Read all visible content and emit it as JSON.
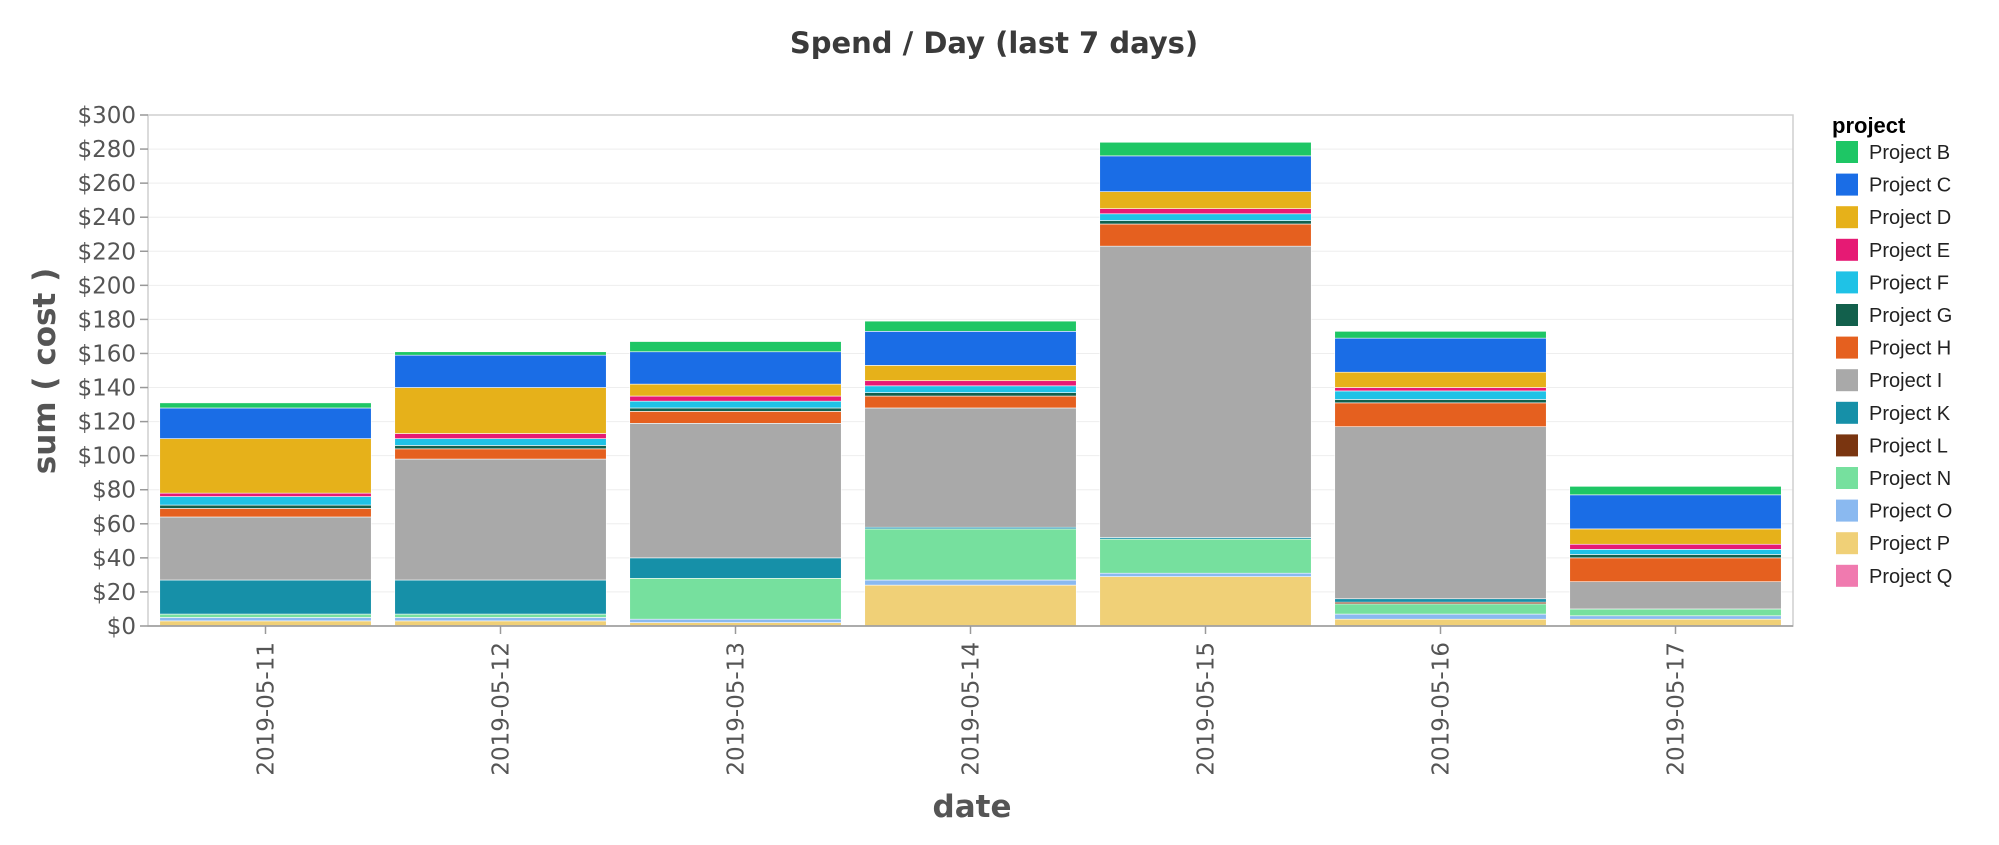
{
  "chart_data": {
    "type": "bar",
    "stacked": true,
    "title": "Spend / Day (last 7 days)",
    "xlabel": "date",
    "ylabel": "sum ( cost )",
    "ylim": [
      0,
      300
    ],
    "y_ticks": [
      0,
      20,
      40,
      60,
      80,
      100,
      120,
      140,
      160,
      180,
      200,
      220,
      240,
      260,
      280,
      300
    ],
    "y_tick_prefix": "$",
    "grid": true,
    "legend_title": "project",
    "legend_position": "right",
    "categories": [
      "2019-05-11",
      "2019-05-12",
      "2019-05-13",
      "2019-05-14",
      "2019-05-15",
      "2019-05-16",
      "2019-05-17"
    ],
    "series": [
      {
        "name": "Project P",
        "color": "#f0d077",
        "values": [
          3,
          3,
          2,
          24,
          29,
          4,
          4
        ]
      },
      {
        "name": "Project Q",
        "color": "#f07aaf",
        "values": [
          0,
          0,
          0,
          0,
          0,
          0,
          0
        ]
      },
      {
        "name": "Project O",
        "color": "#8ab9f0",
        "values": [
          2,
          2,
          2,
          3,
          2,
          3,
          2
        ]
      },
      {
        "name": "Project N",
        "color": "#76e09e",
        "values": [
          2,
          2,
          24,
          30,
          20,
          6,
          4
        ]
      },
      {
        "name": "Project L",
        "color": "#7a3510",
        "values": [
          0,
          0,
          0,
          0,
          0,
          1,
          0
        ]
      },
      {
        "name": "Project K",
        "color": "#1690a8",
        "values": [
          20,
          20,
          12,
          1,
          1,
          2,
          0
        ]
      },
      {
        "name": "Project I",
        "color": "#a9a9a9",
        "values": [
          37,
          71,
          79,
          70,
          171,
          101,
          16
        ]
      },
      {
        "name": "Project H",
        "color": "#e5601f",
        "values": [
          5,
          6,
          7,
          7,
          13,
          14,
          14
        ]
      },
      {
        "name": "Project G",
        "color": "#12604c",
        "values": [
          2,
          2,
          2,
          2,
          2,
          2,
          2
        ]
      },
      {
        "name": "Project F",
        "color": "#1fc2e6",
        "values": [
          5,
          4,
          4,
          4,
          4,
          5,
          3
        ]
      },
      {
        "name": "Project E",
        "color": "#e61a74",
        "values": [
          2,
          3,
          3,
          3,
          3,
          2,
          3
        ]
      },
      {
        "name": "Project D",
        "color": "#e6b11a",
        "values": [
          32,
          27,
          7,
          9,
          10,
          9,
          9
        ]
      },
      {
        "name": "Project C",
        "color": "#1a6de6",
        "values": [
          18,
          19,
          19,
          20,
          21,
          20,
          20
        ]
      },
      {
        "name": "Project B",
        "color": "#1ec665",
        "values": [
          3,
          2,
          6,
          6,
          8,
          4,
          5
        ]
      }
    ],
    "legend_order": [
      "Project B",
      "Project C",
      "Project D",
      "Project E",
      "Project F",
      "Project G",
      "Project H",
      "Project I",
      "Project K",
      "Project L",
      "Project N",
      "Project O",
      "Project P",
      "Project Q"
    ]
  }
}
